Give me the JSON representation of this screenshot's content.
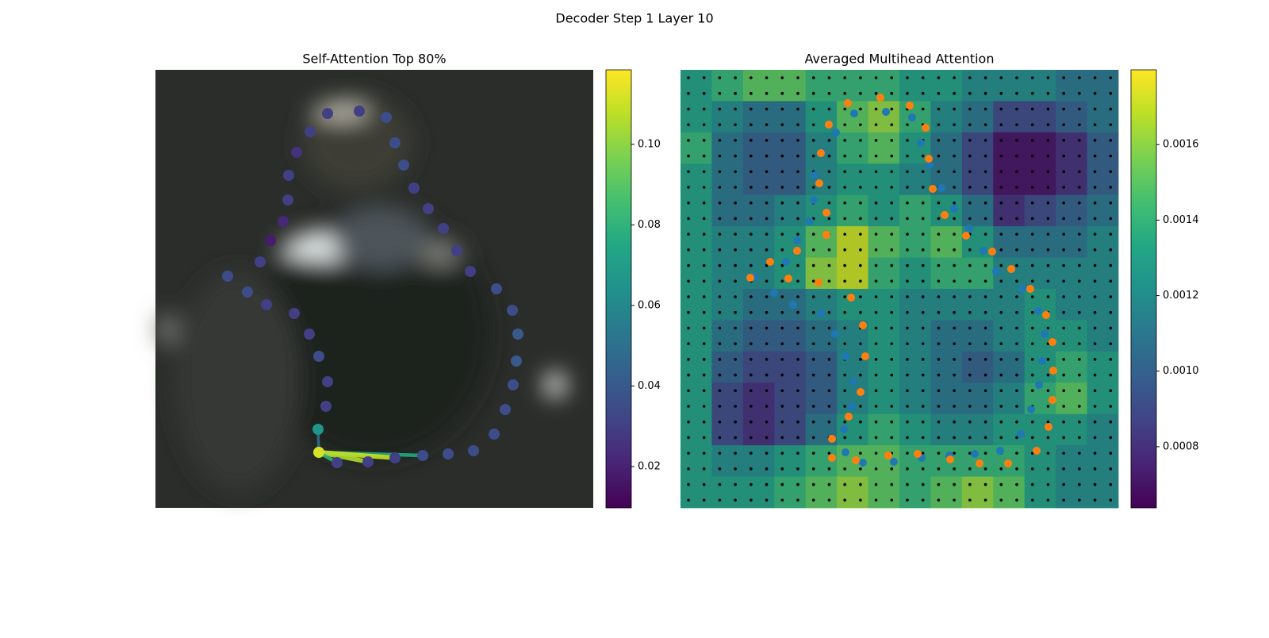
{
  "title": "Decoder Step 1 Layer 10",
  "chart_data": [
    {
      "type": "scatter",
      "title": "Self-Attention Top 80%",
      "xlim": [
        0,
        552
      ],
      "ylim": [
        552,
        0
      ],
      "x": [
        217,
        257,
        291,
        302,
        313,
        326,
        344,
        363,
        380,
        397,
        430,
        450,
        457,
        455,
        451,
        441,
        427,
        401,
        369,
        337,
        302,
        268,
        229,
        206,
        205,
        215,
        217,
        206,
        194,
        175,
        140,
        116,
        91,
        132,
        145,
        161,
        167,
        168,
        178,
        195
      ],
      "y": [
        55,
        52,
        60,
        92,
        120,
        149,
        175,
        200,
        228,
        254,
        276,
        303,
        333,
        367,
        397,
        428,
        459,
        480,
        484,
        486,
        489,
        494,
        495,
        482,
        453,
        424,
        393,
        361,
        333,
        307,
        296,
        280,
        260,
        242,
        215,
        191,
        164,
        133,
        104,
        78
      ],
      "values": [
        0.03,
        0.03,
        0.035,
        0.035,
        0.035,
        0.03,
        0.03,
        0.03,
        0.03,
        0.03,
        0.035,
        0.035,
        0.04,
        0.04,
        0.035,
        0.035,
        0.035,
        0.035,
        0.035,
        0.035,
        0.03,
        0.03,
        0.03,
        0.112,
        0.066,
        0.03,
        0.03,
        0.035,
        0.03,
        0.03,
        0.03,
        0.035,
        0.035,
        0.03,
        0.018,
        0.022,
        0.03,
        0.03,
        0.025,
        0.03
      ],
      "links": {
        "source": 23,
        "targets": [
          19,
          20,
          21,
          22,
          24
        ],
        "values": [
          0.075,
          0.11,
          0.105,
          0.08,
          0.05
        ]
      },
      "clim": [
        0.00975,
        0.1185
      ],
      "cticks": [
        0.02,
        0.04,
        0.06,
        0.08,
        {
          "value": 0.1,
          "label": "0.10"
        }
      ]
    },
    {
      "type": "heatmap",
      "title": "Averaged Multihead Attention",
      "xlim": [
        0,
        552
      ],
      "ylim": [
        552,
        0
      ],
      "z": [
        [
          0.0013,
          0.0014,
          0.0015,
          0.0015,
          0.0014,
          0.0014,
          0.0014,
          0.0013,
          0.0013,
          0.0012,
          0.0012,
          0.0012,
          0.0011,
          0.0011
        ],
        [
          0.0013,
          0.0012,
          0.0011,
          0.0011,
          0.0013,
          0.0015,
          0.0016,
          0.0014,
          0.0012,
          0.0011,
          0.0009,
          0.0009,
          0.001,
          0.0011
        ],
        [
          0.0014,
          0.0011,
          0.001,
          0.001,
          0.0012,
          0.0014,
          0.0015,
          0.0013,
          0.0011,
          0.0009,
          0.0007,
          0.0007,
          0.0008,
          0.001
        ],
        [
          0.0013,
          0.0011,
          0.001,
          0.001,
          0.0012,
          0.0013,
          0.0013,
          0.0012,
          0.0011,
          0.0009,
          0.0007,
          0.0007,
          0.0008,
          0.001
        ],
        [
          0.0013,
          0.0011,
          0.0011,
          0.0012,
          0.0013,
          0.0014,
          0.0013,
          0.0014,
          0.0013,
          0.0011,
          0.0008,
          0.0009,
          0.001,
          0.0011
        ],
        [
          0.0013,
          0.0012,
          0.0012,
          0.0013,
          0.0015,
          0.0017,
          0.0015,
          0.0014,
          0.0015,
          0.0013,
          0.0011,
          0.0011,
          0.0011,
          0.0012
        ],
        [
          0.0013,
          0.0012,
          0.0012,
          0.0013,
          0.0016,
          0.0017,
          0.0014,
          0.0013,
          0.0014,
          0.0014,
          0.0012,
          0.0012,
          0.0012,
          0.0012
        ],
        [
          0.0013,
          0.0012,
          0.0011,
          0.0011,
          0.0012,
          0.0013,
          0.0013,
          0.0012,
          0.0012,
          0.0012,
          0.0012,
          0.0013,
          0.0012,
          0.0012
        ],
        [
          0.0013,
          0.0011,
          0.001,
          0.001,
          0.0011,
          0.0012,
          0.0013,
          0.0012,
          0.0011,
          0.0011,
          0.0012,
          0.0013,
          0.0013,
          0.0012
        ],
        [
          0.0013,
          0.001,
          0.0009,
          0.0009,
          0.001,
          0.0012,
          0.0013,
          0.0012,
          0.0011,
          0.001,
          0.0011,
          0.0013,
          0.0014,
          0.0013
        ],
        [
          0.0013,
          0.0009,
          0.0008,
          0.0009,
          0.001,
          0.0012,
          0.0013,
          0.0012,
          0.0011,
          0.0011,
          0.0012,
          0.0014,
          0.0015,
          0.0013
        ],
        [
          0.0013,
          0.0009,
          0.0008,
          0.0009,
          0.0011,
          0.0013,
          0.0014,
          0.0013,
          0.0012,
          0.0012,
          0.0013,
          0.0013,
          0.0013,
          0.0012
        ],
        [
          0.0013,
          0.0012,
          0.0012,
          0.0013,
          0.0014,
          0.0015,
          0.0015,
          0.0014,
          0.0014,
          0.0014,
          0.0014,
          0.0013,
          0.0012,
          0.0012
        ],
        [
          0.0013,
          0.0013,
          0.0013,
          0.0014,
          0.0015,
          0.0016,
          0.0015,
          0.0014,
          0.0015,
          0.0016,
          0.0015,
          0.0013,
          0.0012,
          0.0012
        ]
      ],
      "clim": [
        0.000638,
        0.001798
      ],
      "cticks": [
        0.0008,
        {
          "value": 0.001,
          "label": "0.0010"
        },
        0.0012,
        0.0014,
        0.0016
      ],
      "point_sets": [
        {
          "color": "#1f77b4",
          "x": [
            219,
            259,
            292,
            303,
            314,
            329,
            345,
            364,
            382,
            398,
            431,
            451,
            459,
            456,
            452,
            442,
            429,
            403,
            371,
            339,
            304,
            269,
            230,
            208,
            206,
            216,
            218,
            208,
            195,
            177,
            142,
            118,
            93,
            133,
            147,
            163,
            168,
            169,
            178,
            196
          ],
          "y": [
            55,
            53,
            60,
            92,
            120,
            149,
            175,
            200,
            228,
            254,
            276,
            304,
            333,
            367,
            397,
            428,
            459,
            480,
            484,
            486,
            489,
            494,
            495,
            482,
            453,
            424,
            393,
            361,
            333,
            307,
            296,
            281,
            261,
            242,
            215,
            191,
            164,
            133,
            104,
            79
          ]
        },
        {
          "color": "#ff7f0e",
          "x": [
            252,
            289,
            309,
            313,
            318,
            333,
            360,
            393,
            417,
            441,
            461,
            469,
            470,
            469,
            464,
            449,
            413,
            377,
            340,
            299,
            262,
            221,
            191,
            191,
            212,
            227,
            233,
            230,
            215,
            174,
            136,
            88,
            113,
            147,
            184,
            184,
            175,
            177,
            187,
            211
          ],
          "y": [
            35,
            45,
            73,
            112,
            150,
            183,
            209,
            229,
            251,
            276,
            309,
            343,
            379,
            416,
            450,
            480,
            496,
            496,
            491,
            484,
            486,
            492,
            489,
            465,
            437,
            406,
            361,
            322,
            287,
            268,
            263,
            262,
            242,
            228,
            208,
            180,
            143,
            105,
            69,
            42
          ]
        }
      ]
    }
  ]
}
